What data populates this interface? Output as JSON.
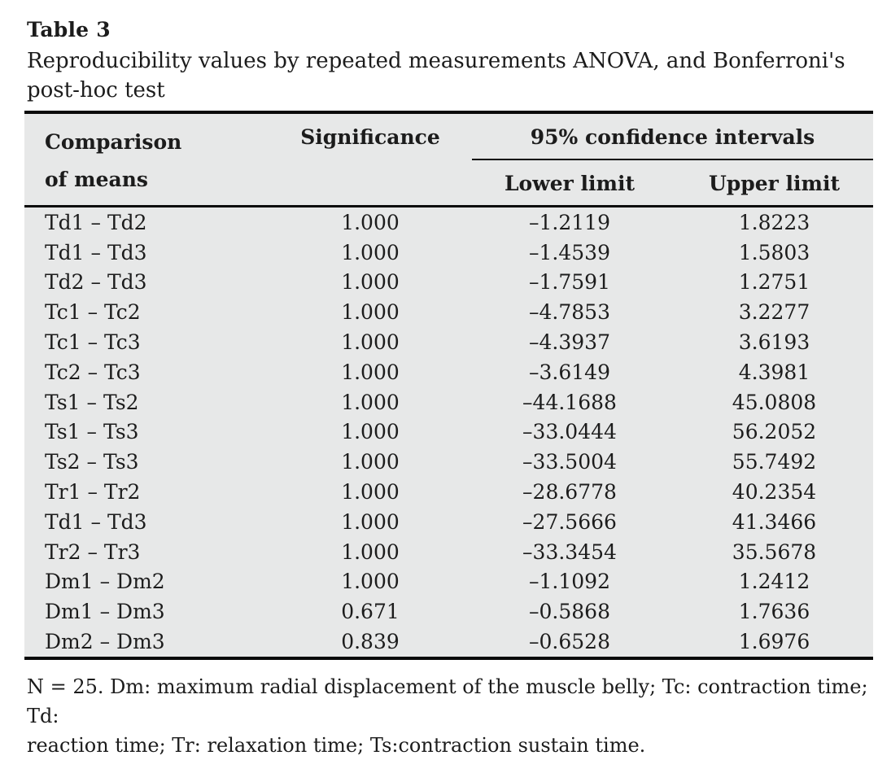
{
  "table_label": "Table 3",
  "caption_lines": [
    "Reproducibility values by repeated measurements ANOVA, and Bonferroni's",
    "post-hoc test"
  ],
  "table": {
    "header": {
      "comparison": "Comparison of means",
      "significance": "Significance",
      "ci": "95% confidence intervals",
      "lower": "Lower limit",
      "upper": "Upper limit"
    },
    "rows": [
      {
        "comparison": "Td1 – Td2",
        "significance": "1.000",
        "lower": "–1.2119",
        "upper": "1.8223"
      },
      {
        "comparison": "Td1 – Td3",
        "significance": "1.000",
        "lower": "–1.4539",
        "upper": "1.5803"
      },
      {
        "comparison": "Td2 – Td3",
        "significance": "1.000",
        "lower": "–1.7591",
        "upper": "1.2751"
      },
      {
        "comparison": "Tc1 – Tc2",
        "significance": "1.000",
        "lower": "–4.7853",
        "upper": "3.2277"
      },
      {
        "comparison": "Tc1 – Tc3",
        "significance": "1.000",
        "lower": "–4.3937",
        "upper": "3.6193"
      },
      {
        "comparison": "Tc2 – Tc3",
        "significance": "1.000",
        "lower": "–3.6149",
        "upper": "4.3981"
      },
      {
        "comparison": "Ts1 – Ts2",
        "significance": "1.000",
        "lower": "–44.1688",
        "upper": "45.0808"
      },
      {
        "comparison": "Ts1 – Ts3",
        "significance": "1.000",
        "lower": "–33.0444",
        "upper": "56.2052"
      },
      {
        "comparison": "Ts2 – Ts3",
        "significance": "1.000",
        "lower": "–33.5004",
        "upper": "55.7492"
      },
      {
        "comparison": "Tr1 – Tr2",
        "significance": "1.000",
        "lower": "–28.6778",
        "upper": "40.2354"
      },
      {
        "comparison": "Td1 – Td3",
        "significance": "1.000",
        "lower": "–27.5666",
        "upper": "41.3466"
      },
      {
        "comparison": "Tr2 – Tr3",
        "significance": "1.000",
        "lower": "–33.3454",
        "upper": "35.5678"
      },
      {
        "comparison": "Dm1 – Dm2",
        "significance": "1.000",
        "lower": "–1.1092",
        "upper": "1.2412"
      },
      {
        "comparison": "Dm1 – Dm3",
        "significance": "0.671",
        "lower": "–0.5868",
        "upper": "1.7636"
      },
      {
        "comparison": "Dm2 – Dm3",
        "significance": "0.839",
        "lower": "–0.6528",
        "upper": "1.6976"
      }
    ]
  },
  "footnote_lines": [
    "N = 25. Dm: maximum radial displacement of the muscle belly; Tc: contraction time; Td:",
    "reaction time; Tr: relaxation time; Ts:contraction sustain time."
  ],
  "colors": {
    "table_background": "#e7e8e8",
    "rule": "#0a0a0a",
    "text": "#1c1c1c",
    "page_background": "#ffffff"
  }
}
